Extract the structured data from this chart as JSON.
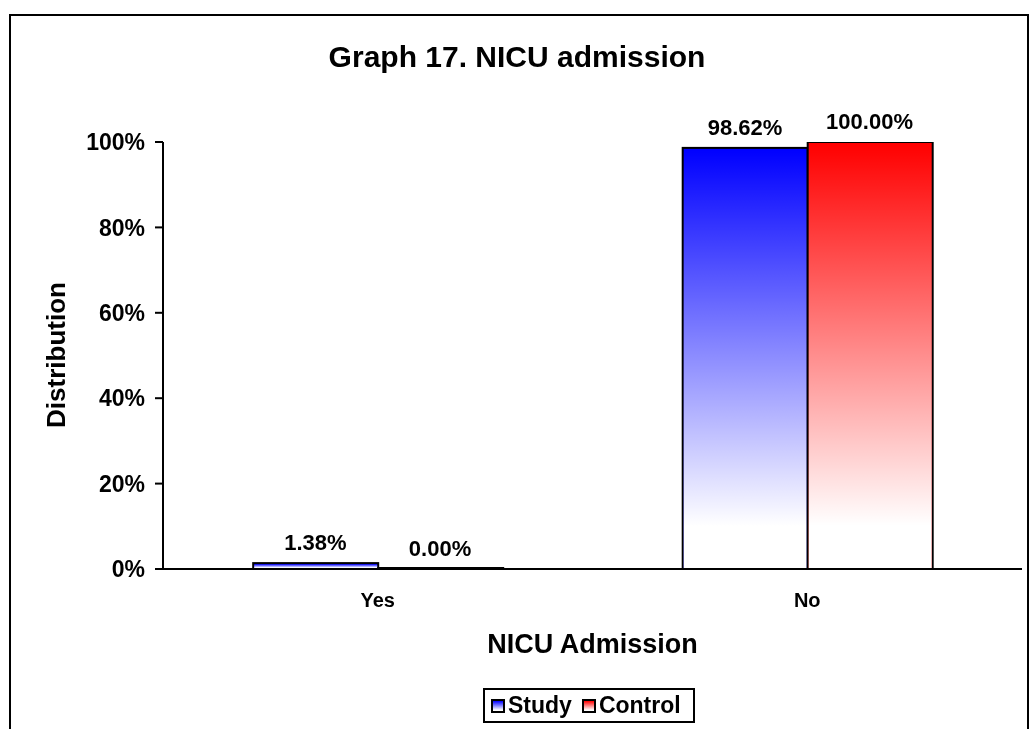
{
  "chart_data": {
    "type": "bar",
    "title": "Graph 17. NICU admission",
    "xlabel": "NICU Admission",
    "ylabel": "Distribution",
    "categories": [
      "Yes",
      "No"
    ],
    "series": [
      {
        "name": "Study",
        "color": "#0000ff",
        "values": [
          1.38,
          98.62
        ],
        "value_labels": [
          "1.38%",
          "98.62%"
        ]
      },
      {
        "name": "Control",
        "color": "#ff0000",
        "values": [
          0,
          100
        ],
        "value_labels": [
          "0.00%",
          "100.00%"
        ]
      }
    ],
    "ylim": [
      0,
      100
    ],
    "yticks": [
      {
        "value": 0,
        "label": "0%"
      },
      {
        "value": 20,
        "label": "20%"
      },
      {
        "value": 40,
        "label": "40%"
      },
      {
        "value": 60,
        "label": "60%"
      },
      {
        "value": 80,
        "label": "80%"
      },
      {
        "value": 100,
        "label": "100%"
      }
    ],
    "legend": "bottom"
  }
}
